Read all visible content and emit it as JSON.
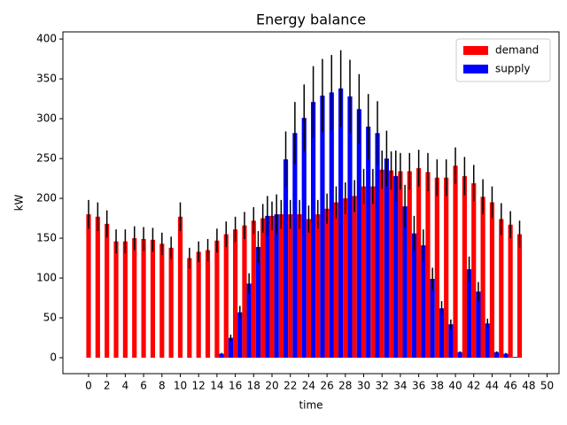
{
  "chart_data": {
    "type": "bar",
    "title": "Energy balance",
    "x_label": "time",
    "y_label": "kW",
    "categories": [
      0,
      1,
      2,
      3,
      4,
      5,
      6,
      7,
      8,
      9,
      10,
      11,
      12,
      13,
      14,
      15,
      16,
      17,
      18,
      19,
      20,
      21,
      22,
      23,
      24,
      25,
      26,
      27,
      28,
      29,
      30,
      31,
      32,
      33,
      34,
      35,
      36,
      37,
      38,
      39,
      40,
      41,
      42,
      43,
      44,
      45,
      46,
      47
    ],
    "series": [
      {
        "name": "demand",
        "color": "#ff0000",
        "offset": 0,
        "values": [
          180,
          177,
          168,
          146,
          146,
          150,
          149,
          148,
          143,
          138,
          177,
          125,
          133,
          135,
          147,
          155,
          161,
          166,
          172,
          175,
          178,
          180,
          180,
          180,
          174,
          180,
          187,
          195,
          200,
          203,
          215,
          215,
          236,
          235,
          234,
          234,
          238,
          233,
          226,
          226,
          241,
          228,
          219,
          202,
          195,
          174,
          167,
          155
        ],
        "errors": [
          18,
          18,
          17,
          15,
          15,
          15,
          15,
          15,
          14,
          14,
          18,
          13,
          13,
          14,
          15,
          16,
          16,
          17,
          17,
          18,
          18,
          18,
          18,
          18,
          17,
          18,
          19,
          20,
          20,
          20,
          22,
          22,
          24,
          24,
          23,
          23,
          23,
          24,
          23,
          23,
          23,
          24,
          23,
          22,
          20,
          20,
          17,
          17
        ]
      },
      {
        "name": "supply",
        "color": "#0000ff",
        "offset": 0.5,
        "values": [
          0,
          0,
          0,
          0,
          0,
          0,
          0,
          0,
          0,
          0,
          0,
          0,
          0,
          0,
          5,
          25,
          57,
          93,
          139,
          178,
          180,
          249,
          282,
          301,
          321,
          329,
          333,
          338,
          328,
          312,
          290,
          282,
          250,
          228,
          190,
          156,
          141,
          99,
          62,
          42,
          7,
          111,
          83,
          43,
          7,
          5,
          1,
          0
        ],
        "errors": [
          0,
          0,
          0,
          0,
          0,
          0,
          0,
          0,
          0,
          0,
          0,
          0,
          0,
          0,
          1,
          4,
          8,
          13,
          20,
          25,
          25,
          35,
          39,
          42,
          45,
          46,
          47,
          48,
          46,
          44,
          41,
          40,
          35,
          32,
          27,
          22,
          20,
          14,
          9,
          6,
          1,
          16,
          12,
          6,
          1,
          1,
          0,
          0
        ]
      }
    ],
    "bar_width": 0.5,
    "xlim": [
      -2.8,
      51.3
    ],
    "xticks": [
      0,
      2,
      4,
      6,
      8,
      10,
      12,
      14,
      16,
      18,
      20,
      22,
      24,
      26,
      28,
      30,
      32,
      34,
      36,
      38,
      40,
      42,
      44,
      46,
      48,
      50
    ],
    "ylim": [
      -20,
      409
    ],
    "yticks": [
      0,
      50,
      100,
      150,
      200,
      250,
      300,
      350,
      400
    ],
    "legend": "upper right"
  }
}
